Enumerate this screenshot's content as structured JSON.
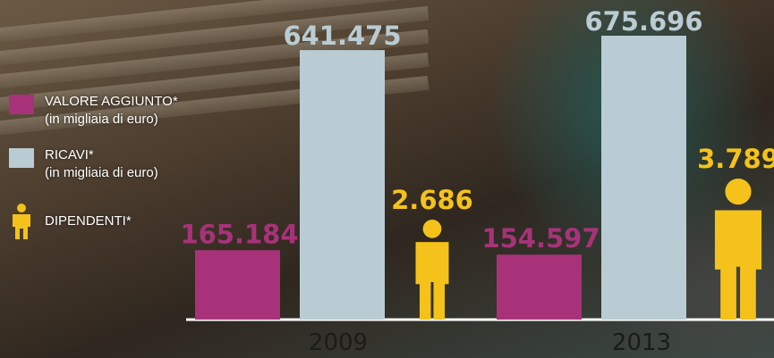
{
  "legend": {
    "valore": {
      "label": "VALORE AGGIUNTO*",
      "unit": "(in migliaia di euro)",
      "color": "#a8327a"
    },
    "ricavi": {
      "label": "RICAVI*",
      "unit": "(in migliaia di euro)",
      "color": "#b9ccd3"
    },
    "dipendenti": {
      "label": "DIPENDENTI*",
      "color": "#f4c21a",
      "icon": "person-icon"
    }
  },
  "chart_data": {
    "type": "bar",
    "categories": [
      "2009",
      "2013"
    ],
    "series": [
      {
        "name": "VALORE AGGIUNTO*",
        "values": [
          165184,
          154597
        ],
        "labels": [
          "165.184",
          "154.597"
        ],
        "color": "#a8327a"
      },
      {
        "name": "RICAVI*",
        "values": [
          641475,
          675696
        ],
        "labels": [
          "641.475",
          "675.696"
        ],
        "color": "#b9ccd3"
      },
      {
        "name": "DIPENDENTI*",
        "values": [
          2686,
          3789
        ],
        "labels": [
          "2.686",
          "3.789"
        ],
        "color": "#f4c21a",
        "marker": "person-icon"
      }
    ],
    "grid": false,
    "legend_position": "left"
  }
}
